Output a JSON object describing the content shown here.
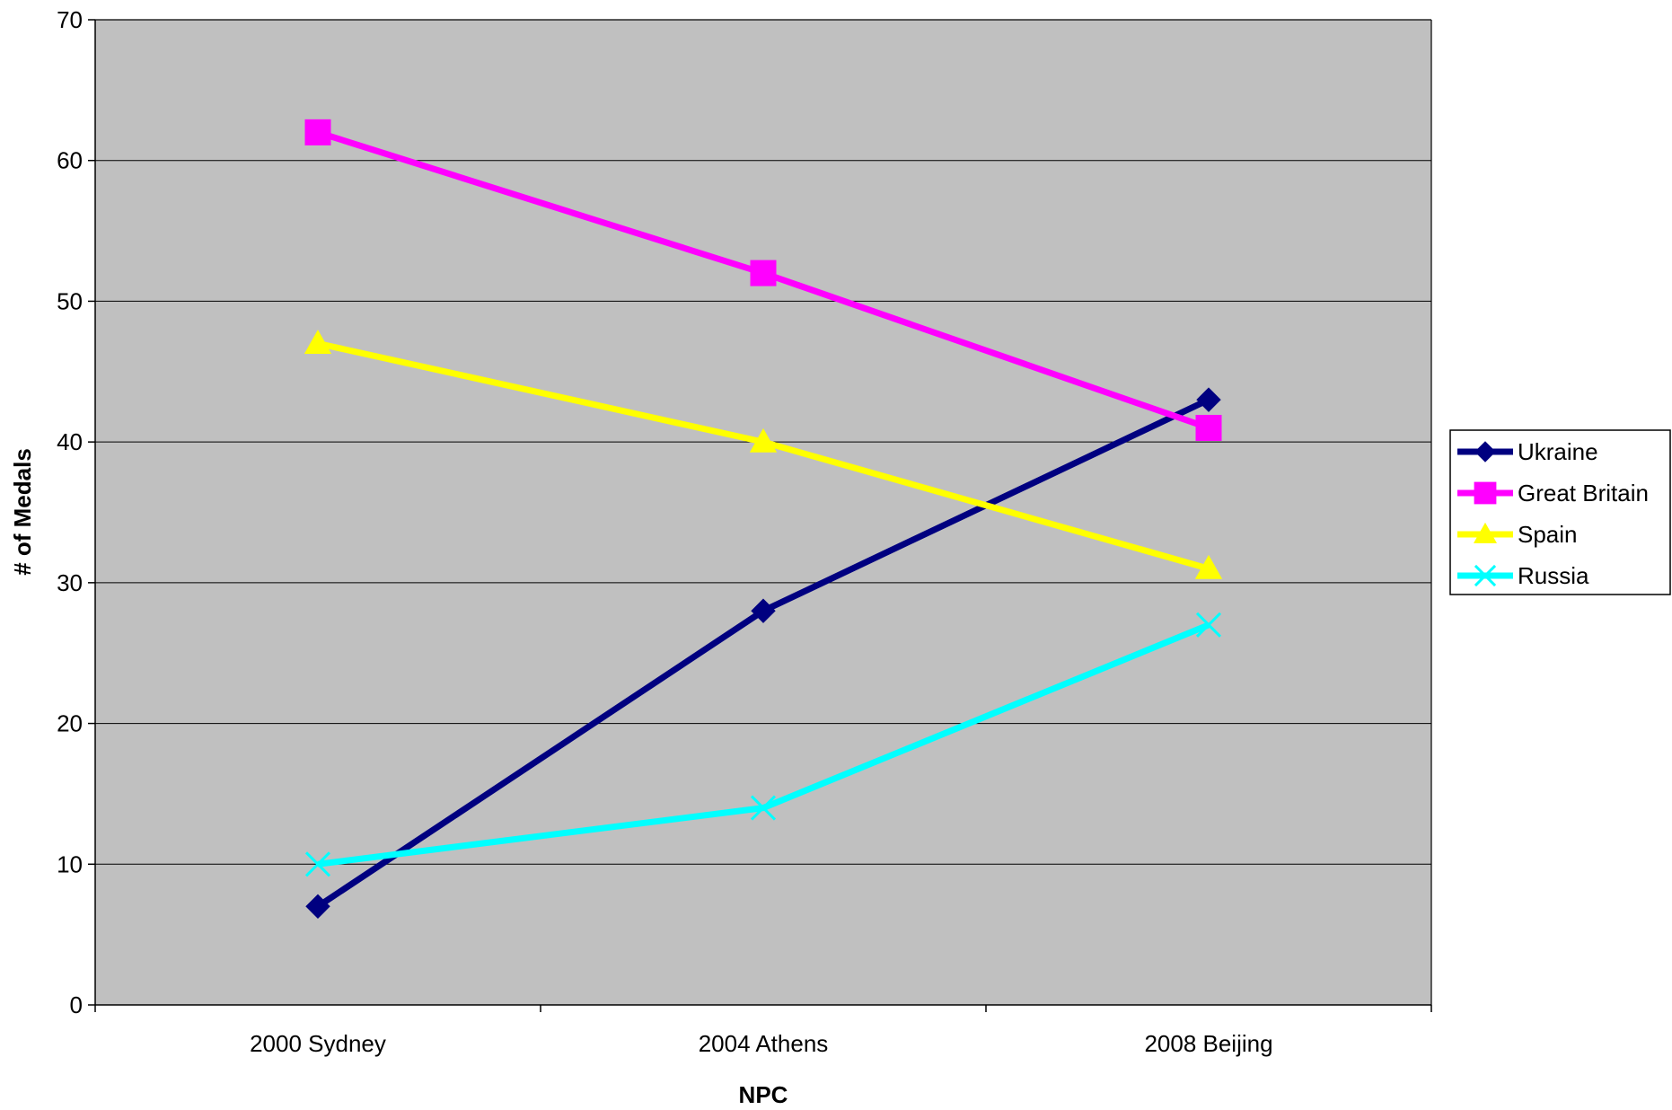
{
  "chart_data": {
    "type": "line",
    "title": "",
    "xlabel": "NPC",
    "ylabel": "# of Medals",
    "categories": [
      "2000 Sydney",
      "2004 Athens",
      "2008 Beijing"
    ],
    "ylim": [
      0,
      70
    ],
    "yticks": [
      0,
      10,
      20,
      30,
      40,
      50,
      60,
      70
    ],
    "grid": true,
    "plot_background": "#c0c0c0",
    "legend_position": "right",
    "series": [
      {
        "name": "Ukraine",
        "values": [
          7,
          28,
          43
        ],
        "color": "#000080",
        "marker": "diamond"
      },
      {
        "name": "Great Britain",
        "values": [
          62,
          52,
          41
        ],
        "color": "#ff00ff",
        "marker": "square"
      },
      {
        "name": "Spain",
        "values": [
          47,
          40,
          31
        ],
        "color": "#ffff00",
        "marker": "triangle"
      },
      {
        "name": "Russia",
        "values": [
          10,
          14,
          27
        ],
        "color": "#00ffff",
        "marker": "x"
      }
    ]
  }
}
